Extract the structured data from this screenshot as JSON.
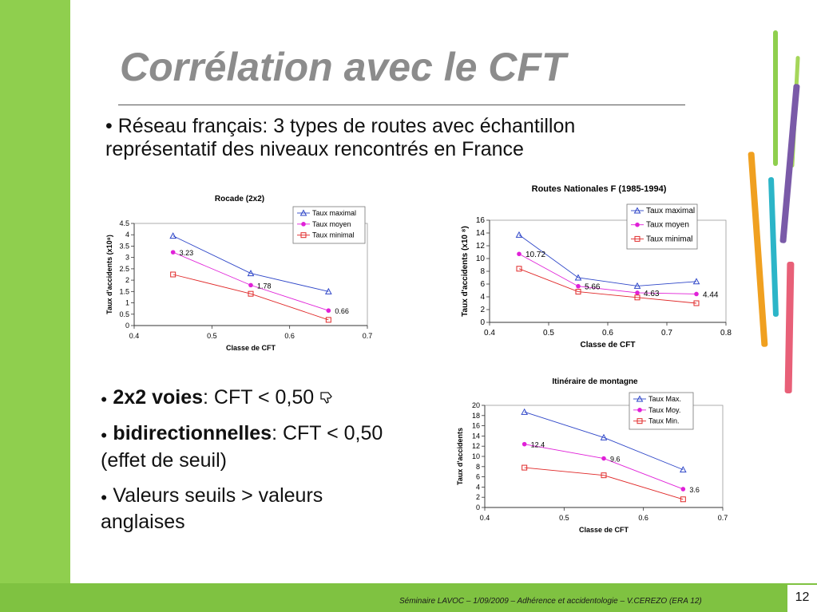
{
  "slide": {
    "title": "Corrélation avec le CFT",
    "intro_line1": "• Réseau français: 3 types de routes avec échantillon",
    "intro_line2": "représentatif des niveaux rencontrés en France",
    "b1_bold": "2x2 voies",
    "b1_rest": ": CFT < 0,50",
    "b1_icon": "thumbs-down-icon",
    "b2_bold": "bidirectionnelles",
    "b2_rest": ": CFT < 0,50",
    "b2_line2": "(effet de seuil)",
    "b3_line1": "Valeurs seuils > valeurs",
    "b3_line2": "anglaises",
    "footer": "Séminaire LAVOC – 1/09/2009 – Adhérence et accidentologie – V.CEREZO (ERA 12)",
    "page_number": "12",
    "colors": {
      "green": "#7fc241",
      "title_gray": "#8c8c8c",
      "blue": "#2e46c8",
      "magenta": "#e020d8",
      "red": "#e02828"
    }
  },
  "chart_data": [
    {
      "type": "line",
      "title": "Rocade (2x2)",
      "xlabel": "Classe de CFT",
      "ylabel": "Taux d'accidents (x10⁸)",
      "xlim": [
        0.4,
        0.7
      ],
      "ylim": [
        0,
        4.5
      ],
      "xticks": [
        "0.4",
        "0.5",
        "0.6",
        "0.7"
      ],
      "yticks": [
        "0",
        "0.5",
        "1",
        "1.5",
        "2",
        "2.5",
        "3",
        "3.5",
        "4",
        "4.5"
      ],
      "x": [
        0.45,
        0.55,
        0.65
      ],
      "series": [
        {
          "name": "Taux maximal",
          "values": [
            3.95,
            2.3,
            1.5
          ],
          "marker": "triangle",
          "color": "#2e46c8"
        },
        {
          "name": "Taux moyen",
          "values": [
            3.23,
            1.78,
            0.66
          ],
          "marker": "dot",
          "color": "#e020d8",
          "labels": [
            "3.23",
            "1.78",
            "0.66"
          ]
        },
        {
          "name": "Taux minimal",
          "values": [
            2.25,
            1.4,
            0.25
          ],
          "marker": "square",
          "color": "#e02828"
        }
      ]
    },
    {
      "type": "line",
      "title": "Routes Nationales F (1985-1994)",
      "xlabel": "Classe de CFT",
      "ylabel": "Taux d'accidents (x10 ⁸)",
      "xlim": [
        0.4,
        0.8
      ],
      "ylim": [
        0,
        16
      ],
      "xticks": [
        "0.4",
        "0.5",
        "0.6",
        "0.7",
        "0.8"
      ],
      "yticks": [
        "0",
        "2",
        "4",
        "6",
        "8",
        "10",
        "12",
        "14",
        "16"
      ],
      "x": [
        0.45,
        0.55,
        0.65,
        0.75
      ],
      "series": [
        {
          "name": "Taux maximal",
          "values": [
            13.7,
            7.0,
            5.7,
            6.4
          ],
          "marker": "triangle",
          "color": "#2e46c8"
        },
        {
          "name": "Taux moyen",
          "values": [
            10.72,
            5.66,
            4.63,
            4.44
          ],
          "marker": "dot",
          "color": "#e020d8",
          "labels": [
            "10.72",
            "5.66",
            "4.63",
            "4.44"
          ]
        },
        {
          "name": "Taux minimal",
          "values": [
            8.4,
            4.8,
            3.9,
            3.0
          ],
          "marker": "square",
          "color": "#e02828"
        }
      ]
    },
    {
      "type": "line",
      "title": "Itinéraire de montagne",
      "xlabel": "Classe de CFT",
      "ylabel": "Taux d'accidents",
      "xlim": [
        0.4,
        0.7
      ],
      "ylim": [
        0,
        20
      ],
      "xticks": [
        "0.4",
        "0.5",
        "0.6",
        "0.7"
      ],
      "yticks": [
        "0",
        "2",
        "4",
        "6",
        "8",
        "10",
        "12",
        "14",
        "16",
        "18",
        "20"
      ],
      "x": [
        0.45,
        0.55,
        0.65
      ],
      "series": [
        {
          "name": "Taux Max.",
          "values": [
            18.7,
            13.7,
            7.4
          ],
          "marker": "triangle",
          "color": "#2e46c8"
        },
        {
          "name": "Taux Moy.",
          "values": [
            12.4,
            9.6,
            3.6
          ],
          "marker": "dot",
          "color": "#e020d8",
          "labels": [
            "12.4",
            "9.6",
            "3.6"
          ]
        },
        {
          "name": "Taux Min.",
          "values": [
            7.8,
            6.3,
            1.6
          ],
          "marker": "square",
          "color": "#e02828"
        }
      ]
    }
  ]
}
